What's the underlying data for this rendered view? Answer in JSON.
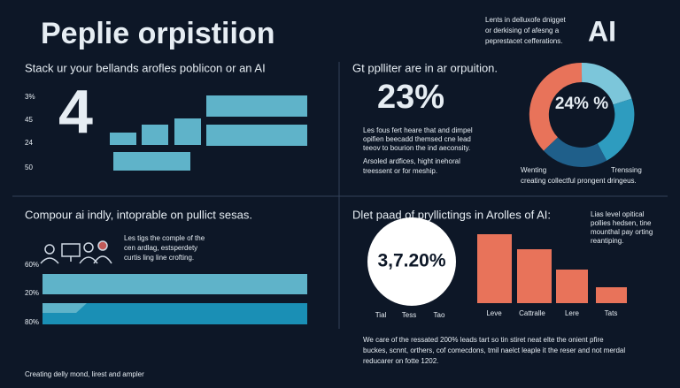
{
  "header": {
    "title": "Peplie orpistiion",
    "note": [
      "Lents in delluxofe dnigget",
      "or derkising of afesng a",
      "peprestacet cefferations."
    ],
    "badge": "AI"
  },
  "panels": [
    {
      "title": "Stack ur your bellands arofles poblicon or an AI",
      "labels": [
        "3%",
        "45",
        "24",
        "50"
      ],
      "big": "4"
    },
    {
      "title": "Gt pplliter are in ar orpuition.",
      "big": "23%",
      "text": [
        "Les fous fert heare that and dimpel",
        "opifien beecadd themsed cne lead",
        "teeov to bourion the ind aeconsity."
      ],
      "text2": [
        "Arsoled ardfices, hight inehoral",
        "treessent or for meship."
      ],
      "donut_label": "24% %",
      "donut_left": "Wenting",
      "donut_right": "Trenssing",
      "donut_caption": "creating collectful prongent dringeus."
    },
    {
      "title": "Compour ai indly, intoprable on pullict sesas.",
      "text": [
        "Les tigs the comple of the",
        "cen ardlag, estsperdety",
        "curtis ling line crofting."
      ],
      "labels": [
        "60%",
        "20%",
        "80%"
      ]
    },
    {
      "title": "Dlet paad of pryllictings in Arolles of AI:",
      "text": [
        "Lias level opitical",
        "pollies hedsen, tine",
        "mounthal pay orting",
        "reantiping."
      ],
      "circle": "3,7.20%",
      "circle_labels": [
        "Tial",
        "Tess",
        "Tao"
      ],
      "bar_labels": [
        "Leve",
        "Cattralle",
        "Lere",
        "Tats"
      ]
    }
  ],
  "footer": {
    "text": [
      "We care of the ressated 200% leads tart so tin stiret neat elte the onient pfire",
      "buckes, scnnt, orthers, cof comecdons, tmil naelct leaple it the reser and not merdal",
      "reducarer on fotte 1202."
    ],
    "caption": "Creating delly mond, lirest and ampler"
  }
}
